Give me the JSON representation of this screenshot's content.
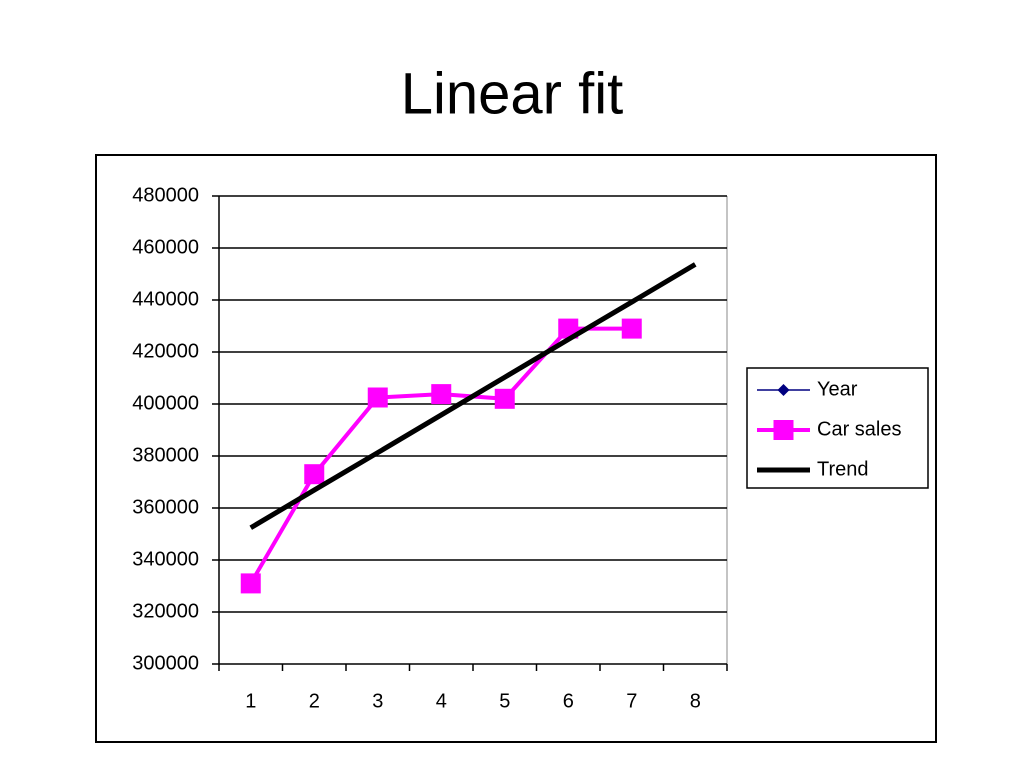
{
  "chart_data": {
    "type": "line",
    "title": "Linear fit",
    "categories": [
      "1",
      "2",
      "3",
      "4",
      "5",
      "6",
      "7",
      "8"
    ],
    "series": [
      {
        "name": "Year",
        "color": "#000080",
        "marker": "diamond",
        "values": [
          null,
          null,
          null,
          null,
          null,
          null,
          null,
          null
        ]
      },
      {
        "name": "Car sales",
        "color": "#ff00ff",
        "marker": "square",
        "values": [
          331000,
          373000,
          402500,
          403800,
          402000,
          429000,
          429000,
          null
        ]
      },
      {
        "name": "Trend",
        "color": "#000000",
        "marker": null,
        "values": [
          352400,
          366900,
          381300,
          395800,
          410300,
          424800,
          439200,
          453700
        ]
      }
    ],
    "ylim": [
      300000,
      480000
    ],
    "yticks": [
      300000,
      320000,
      340000,
      360000,
      380000,
      400000,
      420000,
      440000,
      460000,
      480000
    ],
    "grid": true,
    "legend": "right"
  }
}
